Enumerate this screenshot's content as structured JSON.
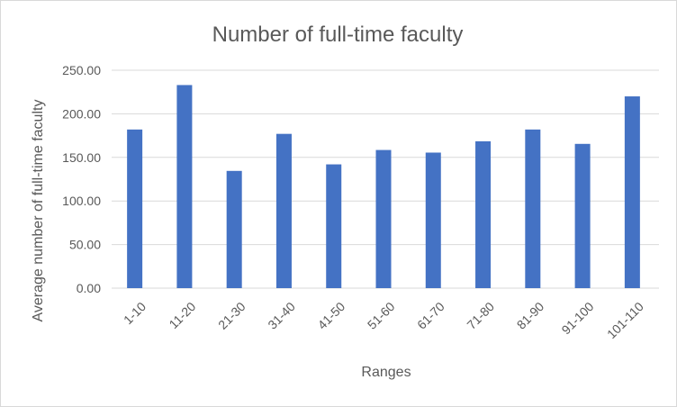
{
  "chart_data": {
    "type": "bar",
    "title": "Number of full-time faculty",
    "xlabel": "Ranges",
    "ylabel": "Average number of full-time faculty",
    "categories": [
      "1-10",
      "11-20",
      "21-30",
      "31-40",
      "41-50",
      "51-60",
      "61-70",
      "71-80",
      "81-90",
      "91-100",
      "101-110"
    ],
    "values": [
      182,
      233,
      134.5,
      177,
      142,
      158.5,
      155.5,
      168.5,
      182,
      165.5,
      220
    ],
    "ylim": [
      0,
      250
    ],
    "yticks": [
      "0.00",
      "50.00",
      "100.00",
      "150.00",
      "200.00",
      "250.00"
    ],
    "grid": true,
    "legend": "none",
    "bar_color": "#4472C4",
    "grid_color": "#d9d9d9"
  }
}
